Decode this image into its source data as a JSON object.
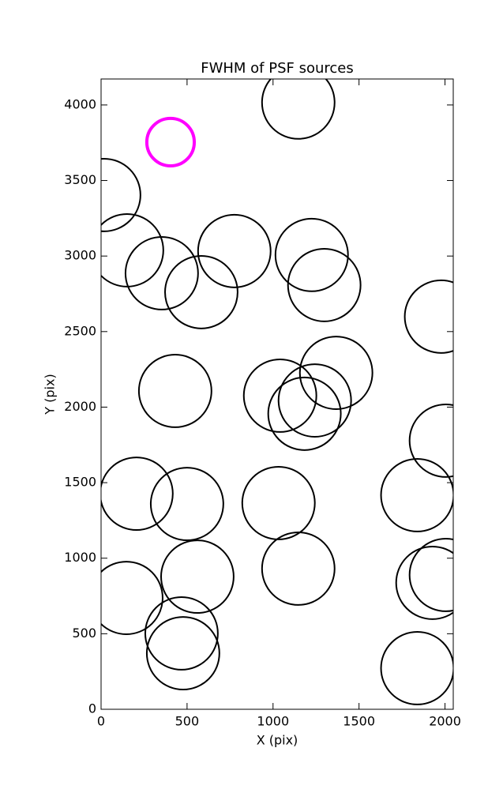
{
  "chart_data": {
    "type": "scatter",
    "title": "FWHM of PSF sources",
    "xlabel": "X (pix)",
    "ylabel": "Y (pix)",
    "xlim": [
      0,
      2048
    ],
    "ylim": [
      0,
      4172
    ],
    "xticks": [
      0,
      500,
      1000,
      1500,
      2000
    ],
    "yticks": [
      0,
      500,
      1000,
      1500,
      2000,
      2500,
      3000,
      3500,
      4000
    ],
    "series": [
      {
        "color": "#000000",
        "line_width": 2,
        "x": [
          1147,
          18,
          151,
          353,
          775,
          583,
          1225,
          1298,
          1977,
          1367,
          431,
          1041,
          1243,
          1183,
          2005,
          206,
          500,
          1032,
          1839,
          560,
          1147,
          147,
          1927,
          2005,
          468,
          477,
          1839
        ],
        "y": [
          4016,
          3404,
          3038,
          2886,
          3033,
          2761,
          3007,
          2808,
          2599,
          2227,
          2107,
          2076,
          2044,
          1956,
          1778,
          1427,
          1359,
          1365,
          1417,
          878,
          931,
          737,
          837,
          889,
          502,
          371,
          272
        ],
        "sizes": [
          211,
          211,
          211,
          211,
          211,
          211,
          211,
          211,
          211,
          211,
          211,
          211,
          211,
          211,
          211,
          211,
          211,
          211,
          211,
          211,
          211,
          211,
          211,
          211,
          211,
          211,
          211
        ]
      },
      {
        "color": "#ff00ff",
        "line_width": 4,
        "x": [
          404
        ],
        "y": [
          3754
        ],
        "sizes": [
          138
        ]
      }
    ]
  }
}
